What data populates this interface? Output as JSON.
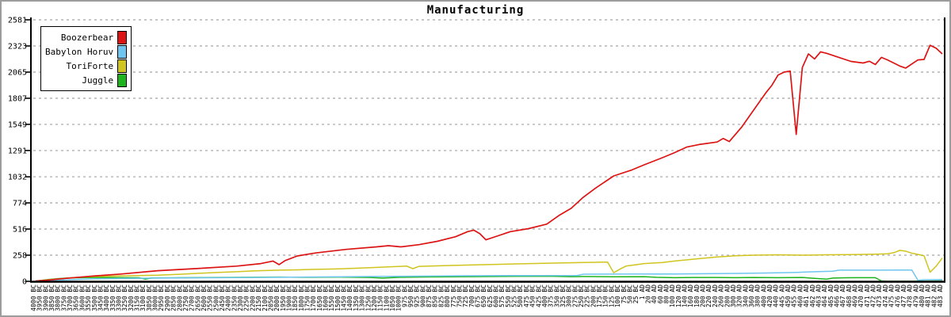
{
  "title": "Manufacturing",
  "legend": [
    {
      "label": "Boozerbear",
      "color": "#dc1414"
    },
    {
      "label": "Babylon Horuv",
      "color": "#6ec6f0"
    },
    {
      "label": "ToriForte",
      "color": "#d0c41e"
    },
    {
      "label": "Juggle",
      "color": "#1eb41e"
    }
  ],
  "colors": {
    "grid": "#b4b4b4",
    "axis": "#000000",
    "frame": "#9c9c9c",
    "background": "#ffffff"
  },
  "chart_data": {
    "type": "line",
    "title": "Manufacturing",
    "xlabel": "",
    "ylabel": "",
    "ylim": [
      0,
      2581
    ],
    "y_ticks": [
      0,
      258,
      516,
      774,
      1032,
      1291,
      1549,
      1807,
      2065,
      2323,
      2581
    ],
    "grid": "horizontal-dashed",
    "legend_position": "top-left",
    "x_labels": [
      "4000 BC",
      "3950 BC",
      "3900 BC",
      "3850 BC",
      "3800 BC",
      "3750 BC",
      "3700 BC",
      "3650 BC",
      "3600 BC",
      "3550 BC",
      "3500 BC",
      "3450 BC",
      "3400 BC",
      "3350 BC",
      "3300 BC",
      "3250 BC",
      "3200 BC",
      "3150 BC",
      "3100 BC",
      "3050 BC",
      "3000 BC",
      "2950 BC",
      "2900 BC",
      "2850 BC",
      "2800 BC",
      "2750 BC",
      "2700 BC",
      "2650 BC",
      "2600 BC",
      "2550 BC",
      "2500 BC",
      "2450 BC",
      "2400 BC",
      "2350 BC",
      "2300 BC",
      "2250 BC",
      "2200 BC",
      "2150 BC",
      "2100 BC",
      "2050 BC",
      "2000 BC",
      "1950 BC",
      "1900 BC",
      "1850 BC",
      "1800 BC",
      "1750 BC",
      "1700 BC",
      "1650 BC",
      "1600 BC",
      "1550 BC",
      "1500 BC",
      "1450 BC",
      "1400 BC",
      "1350 BC",
      "1300 BC",
      "1250 BC",
      "1200 BC",
      "1150 BC",
      "1100 BC",
      "1050 BC",
      "1000 BC",
      "975 BC",
      "950 BC",
      "925 BC",
      "900 BC",
      "875 BC",
      "850 BC",
      "825 BC",
      "800 BC",
      "775 BC",
      "750 BC",
      "725 BC",
      "700 BC",
      "675 BC",
      "650 BC",
      "625 BC",
      "600 BC",
      "575 BC",
      "550 BC",
      "525 BC",
      "500 BC",
      "475 BC",
      "450 BC",
      "425 BC",
      "400 BC",
      "375 BC",
      "350 BC",
      "325 BC",
      "300 BC",
      "275 BC",
      "250 BC",
      "225 BC",
      "200 BC",
      "175 BC",
      "150 BC",
      "125 BC",
      "100 BC",
      "75 BC",
      "50 BC",
      "25 BC",
      "1 AD",
      "20 AD",
      "40 AD",
      "60 AD",
      "80 AD",
      "100 AD",
      "120 AD",
      "140 AD",
      "160 AD",
      "180 AD",
      "200 AD",
      "220 AD",
      "240 AD",
      "260 AD",
      "280 AD",
      "300 AD",
      "320 AD",
      "340 AD",
      "360 AD",
      "380 AD",
      "400 AD",
      "420 AD",
      "440 AD",
      "445 AD",
      "450 AD",
      "455 AD",
      "460 AD",
      "461 AD",
      "462 AD",
      "463 AD",
      "464 AD",
      "465 AD",
      "466 AD",
      "467 AD",
      "468 AD",
      "469 AD",
      "470 AD",
      "471 AD",
      "472 AD",
      "473 AD",
      "474 AD",
      "475 AD",
      "476 AD",
      "477 AD",
      "478 AD",
      "479 AD",
      "480 AD",
      "481 AD",
      "482 AD",
      "483 AD"
    ],
    "series": [
      {
        "name": "Boozerbear",
        "color": "#dc1414",
        "points": [
          [
            0,
            3
          ],
          [
            2,
            12
          ],
          [
            5,
            30
          ],
          [
            10,
            55
          ],
          [
            14,
            72
          ],
          [
            20,
            105
          ],
          [
            27,
            128
          ],
          [
            33,
            150
          ],
          [
            37,
            175
          ],
          [
            39,
            200
          ],
          [
            40,
            165
          ],
          [
            41,
            205
          ],
          [
            43,
            250
          ],
          [
            46,
            280
          ],
          [
            51,
            315
          ],
          [
            56,
            340
          ],
          [
            58,
            352
          ],
          [
            60,
            340
          ],
          [
            63,
            362
          ],
          [
            66,
            395
          ],
          [
            69,
            440
          ],
          [
            71,
            490
          ],
          [
            72,
            505
          ],
          [
            73,
            470
          ],
          [
            74,
            410
          ],
          [
            76,
            450
          ],
          [
            78,
            490
          ],
          [
            81,
            520
          ],
          [
            84,
            565
          ],
          [
            86,
            650
          ],
          [
            88,
            720
          ],
          [
            90,
            830
          ],
          [
            92,
            920
          ],
          [
            95,
            1040
          ],
          [
            98,
            1100
          ],
          [
            100,
            1150
          ],
          [
            103,
            1220
          ],
          [
            105,
            1270
          ],
          [
            107,
            1325
          ],
          [
            109,
            1350
          ],
          [
            112,
            1375
          ],
          [
            113,
            1410
          ],
          [
            114,
            1380
          ],
          [
            116,
            1520
          ],
          [
            118,
            1690
          ],
          [
            120,
            1860
          ],
          [
            121,
            1935
          ],
          [
            122,
            2035
          ],
          [
            123,
            2065
          ],
          [
            124,
            2075
          ],
          [
            125,
            1450
          ],
          [
            126,
            2110
          ],
          [
            127,
            2245
          ],
          [
            128,
            2195
          ],
          [
            129,
            2265
          ],
          [
            130,
            2250
          ],
          [
            132,
            2210
          ],
          [
            134,
            2170
          ],
          [
            136,
            2155
          ],
          [
            137,
            2172
          ],
          [
            138,
            2140
          ],
          [
            139,
            2210
          ],
          [
            140,
            2185
          ],
          [
            142,
            2125
          ],
          [
            143,
            2105
          ],
          [
            145,
            2185
          ],
          [
            146,
            2190
          ],
          [
            147,
            2330
          ],
          [
            148,
            2300
          ],
          [
            149,
            2245
          ]
        ]
      },
      {
        "name": "Babylon Horuv",
        "color": "#6ec6f0",
        "points": [
          [
            0,
            2
          ],
          [
            5,
            15
          ],
          [
            10,
            25
          ],
          [
            20,
            32
          ],
          [
            30,
            36
          ],
          [
            40,
            40
          ],
          [
            50,
            45
          ],
          [
            60,
            50
          ],
          [
            70,
            55
          ],
          [
            80,
            57
          ],
          [
            89,
            58
          ],
          [
            90,
            70
          ],
          [
            100,
            72
          ],
          [
            105,
            73
          ],
          [
            110,
            75
          ],
          [
            115,
            78
          ],
          [
            120,
            82
          ],
          [
            125,
            88
          ],
          [
            128,
            95
          ],
          [
            131,
            100
          ],
          [
            132,
            110
          ],
          [
            138,
            110
          ],
          [
            144,
            112
          ],
          [
            145,
            10
          ],
          [
            146,
            16
          ],
          [
            149,
            18
          ]
        ]
      },
      {
        "name": "ToriForte",
        "color": "#d0c41e",
        "points": [
          [
            0,
            3
          ],
          [
            3,
            20
          ],
          [
            7,
            40
          ],
          [
            10,
            48
          ],
          [
            15,
            55
          ],
          [
            20,
            60
          ],
          [
            24,
            70
          ],
          [
            27,
            80
          ],
          [
            30,
            88
          ],
          [
            33,
            95
          ],
          [
            36,
            103
          ],
          [
            40,
            110
          ],
          [
            44,
            115
          ],
          [
            46,
            118
          ],
          [
            50,
            123
          ],
          [
            55,
            135
          ],
          [
            58,
            142
          ],
          [
            61,
            150
          ],
          [
            62,
            125
          ],
          [
            63,
            148
          ],
          [
            67,
            155
          ],
          [
            72,
            162
          ],
          [
            79,
            172
          ],
          [
            85,
            180
          ],
          [
            90,
            186
          ],
          [
            94,
            190
          ],
          [
            95,
            85
          ],
          [
            96,
            120
          ],
          [
            97,
            150
          ],
          [
            100,
            175
          ],
          [
            103,
            185
          ],
          [
            105,
            200
          ],
          [
            108,
            218
          ],
          [
            112,
            240
          ],
          [
            115,
            252
          ],
          [
            118,
            258
          ],
          [
            122,
            262
          ],
          [
            126,
            258
          ],
          [
            130,
            262
          ],
          [
            134,
            264
          ],
          [
            138,
            268
          ],
          [
            140,
            272
          ],
          [
            141,
            282
          ],
          [
            142,
            305
          ],
          [
            143,
            298
          ],
          [
            144,
            278
          ],
          [
            145,
            266
          ],
          [
            146,
            252
          ],
          [
            147,
            90
          ],
          [
            148,
            150
          ],
          [
            149,
            230
          ]
        ]
      },
      {
        "name": "Juggle",
        "color": "#1eb41e",
        "points": [
          [
            0,
            2
          ],
          [
            2,
            18
          ],
          [
            4,
            28
          ],
          [
            6,
            35
          ],
          [
            10,
            38
          ],
          [
            15,
            36
          ],
          [
            17,
            35
          ],
          [
            18,
            22
          ],
          [
            19,
            33
          ],
          [
            25,
            36
          ],
          [
            30,
            38
          ],
          [
            35,
            40
          ],
          [
            40,
            42
          ],
          [
            45,
            40
          ],
          [
            50,
            42
          ],
          [
            55,
            38
          ],
          [
            57,
            32
          ],
          [
            60,
            40
          ],
          [
            65,
            44
          ],
          [
            70,
            46
          ],
          [
            75,
            48
          ],
          [
            80,
            50
          ],
          [
            85,
            50
          ],
          [
            88,
            46
          ],
          [
            90,
            48
          ],
          [
            95,
            45
          ],
          [
            100,
            46
          ],
          [
            102,
            40
          ],
          [
            105,
            36
          ],
          [
            108,
            38
          ],
          [
            112,
            38
          ],
          [
            115,
            36
          ],
          [
            118,
            38
          ],
          [
            122,
            36
          ],
          [
            126,
            38
          ],
          [
            128,
            30
          ],
          [
            130,
            22
          ],
          [
            131,
            32
          ],
          [
            133,
            35
          ],
          [
            135,
            36
          ],
          [
            138,
            36
          ],
          [
            139,
            4
          ],
          [
            140,
            1
          ],
          [
            145,
            1
          ],
          [
            149,
            4
          ]
        ]
      }
    ]
  }
}
